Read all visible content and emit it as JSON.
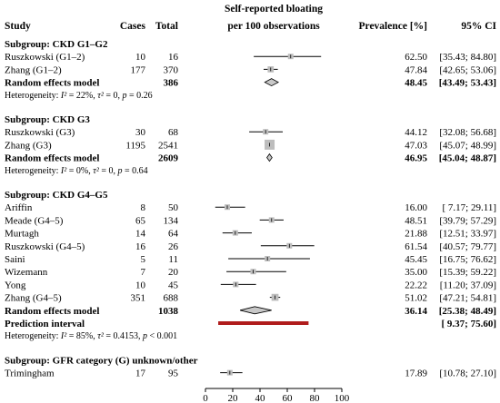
{
  "header": {
    "study": "Study",
    "cases": "Cases",
    "total": "Total",
    "plot_title_line1": "Self-reported bloating",
    "plot_title_line2": "per 100 observations",
    "prevalence": "Prevalence [%]",
    "ci": "95% CI"
  },
  "colors": {
    "square": "#bdbdbd",
    "diamond": "#c8c8c8",
    "prediction": "#b01c1c",
    "line": "#000000"
  },
  "chart_data": {
    "type": "forest",
    "xlim": [
      0,
      100
    ],
    "x_ticks": [
      "0",
      "20",
      "40",
      "60",
      "80",
      "100"
    ],
    "subgroups": [
      {
        "title": "Subgroup: CKD G1–G2",
        "studies": [
          {
            "name": "Ruszkowski (G1–2)",
            "cases": "10",
            "total": "16",
            "est": 62.5,
            "lo": 35.43,
            "hi": 84.8,
            "prev": "62.50",
            "ci": "[35.43; 84.80]"
          },
          {
            "name": "Zhang (G1–2)",
            "cases": "177",
            "total": "370",
            "est": 47.84,
            "lo": 42.65,
            "hi": 53.06,
            "prev": "47.84",
            "ci": "[42.65; 53.06]"
          }
        ],
        "random": {
          "label": "Random effects model",
          "total": "386",
          "est": 48.45,
          "lo": 43.49,
          "hi": 53.43,
          "prev": "48.45",
          "ci": "[43.49; 53.43]"
        },
        "heterogeneity": "Heterogeneity: I² = 22%, τ² = 0, p = 0.26"
      },
      {
        "title": "Subgroup: CKD G3",
        "studies": [
          {
            "name": "Ruszkowski (G3)",
            "cases": "30",
            "total": "68",
            "est": 44.12,
            "lo": 32.08,
            "hi": 56.68,
            "prev": "44.12",
            "ci": "[32.08; 56.68]"
          },
          {
            "name": "Zhang (G3)",
            "cases": "1195",
            "total": "2541",
            "est": 47.03,
            "lo": 45.07,
            "hi": 48.99,
            "prev": "47.03",
            "ci": "[45.07; 48.99]"
          }
        ],
        "random": {
          "label": "Random effects model",
          "total": "2609",
          "est": 46.95,
          "lo": 45.04,
          "hi": 48.87,
          "prev": "46.95",
          "ci": "[45.04; 48.87]"
        },
        "heterogeneity": "Heterogeneity: I² = 0%, τ² = 0, p = 0.64"
      },
      {
        "title": "Subgroup: CKD G4–G5",
        "studies": [
          {
            "name": "Ariffin",
            "cases": "8",
            "total": "50",
            "est": 16.0,
            "lo": 7.17,
            "hi": 29.11,
            "prev": "16.00",
            "ci": "[ 7.17; 29.11]"
          },
          {
            "name": "Meade (G4–5)",
            "cases": "65",
            "total": "134",
            "est": 48.51,
            "lo": 39.79,
            "hi": 57.29,
            "prev": "48.51",
            "ci": "[39.79; 57.29]"
          },
          {
            "name": "Murtagh",
            "cases": "14",
            "total": "64",
            "est": 21.88,
            "lo": 12.51,
            "hi": 33.97,
            "prev": "21.88",
            "ci": "[12.51; 33.97]"
          },
          {
            "name": "Ruszkowski (G4–5)",
            "cases": "16",
            "total": "26",
            "est": 61.54,
            "lo": 40.57,
            "hi": 79.77,
            "prev": "61.54",
            "ci": "[40.57; 79.77]"
          },
          {
            "name": "Saini",
            "cases": "5",
            "total": "11",
            "est": 45.45,
            "lo": 16.75,
            "hi": 76.62,
            "prev": "45.45",
            "ci": "[16.75; 76.62]"
          },
          {
            "name": "Wizemann",
            "cases": "7",
            "total": "20",
            "est": 35.0,
            "lo": 15.39,
            "hi": 59.22,
            "prev": "35.00",
            "ci": "[15.39; 59.22]"
          },
          {
            "name": "Yong",
            "cases": "10",
            "total": "45",
            "est": 22.22,
            "lo": 11.2,
            "hi": 37.09,
            "prev": "22.22",
            "ci": "[11.20; 37.09]"
          },
          {
            "name": "Zhang (G4–5)",
            "cases": "351",
            "total": "688",
            "est": 51.02,
            "lo": 47.21,
            "hi": 54.81,
            "prev": "51.02",
            "ci": "[47.21; 54.81]"
          }
        ],
        "random": {
          "label": "Random effects model",
          "total": "1038",
          "est": 36.14,
          "lo": 25.38,
          "hi": 48.49,
          "prev": "36.14",
          "ci": "[25.38; 48.49]"
        },
        "prediction": {
          "label": "Prediction interval",
          "lo": 9.37,
          "hi": 75.6,
          "ci": "[ 9.37; 75.60]"
        },
        "heterogeneity": "Heterogeneity: I² = 85%, τ² = 0.4153, p < 0.001"
      },
      {
        "title": "Subgroup: GFR category (G) unknown/other",
        "studies": [
          {
            "name": "Trimingham",
            "cases": "17",
            "total": "95",
            "est": 17.89,
            "lo": 10.78,
            "hi": 27.1,
            "prev": "17.89",
            "ci": "[10.78; 27.10]"
          }
        ]
      }
    ]
  }
}
